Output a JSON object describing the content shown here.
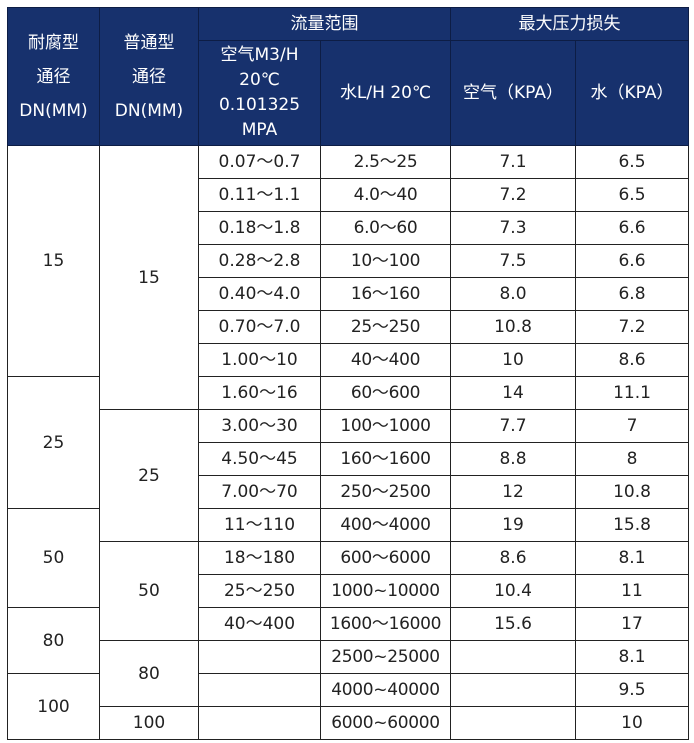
{
  "header": {
    "col1": [
      "耐腐型",
      "通径",
      "DN(MM)"
    ],
    "col2": [
      "普通型",
      "通径",
      "DN(MM)"
    ],
    "flow_group": "流量范围",
    "pressure_group": "最大压力损失",
    "air_flow": [
      "空气M3/H",
      "20℃",
      "0.101325",
      "MPA"
    ],
    "water_flow": "水L/H 20℃",
    "air_loss": "空气（KPA）",
    "water_loss": "水（KPA）"
  },
  "anticorrosion_dn": [
    {
      "value": "15",
      "span": 7
    },
    {
      "value": "25",
      "span": 4
    },
    {
      "value": "50",
      "span": 3
    },
    {
      "value": "80",
      "span": 2
    },
    {
      "value": "100",
      "span": 2
    }
  ],
  "standard_dn": [
    {
      "value": "15",
      "span": 8
    },
    {
      "value": "25",
      "span": 4
    },
    {
      "value": "50",
      "span": 3
    },
    {
      "value": "80",
      "span": 2
    },
    {
      "value": "100",
      "span": 1
    }
  ],
  "rows": [
    {
      "air_flow": "0.07～0.7",
      "water_flow": "2.5～25",
      "air_loss": "7.1",
      "water_loss": "6.5"
    },
    {
      "air_flow": "0.11～1.1",
      "water_flow": "4.0～40",
      "air_loss": "7.2",
      "water_loss": "6.5"
    },
    {
      "air_flow": "0.18～1.8",
      "water_flow": "6.0～60",
      "air_loss": "7.3",
      "water_loss": "6.6"
    },
    {
      "air_flow": "0.28～2.8",
      "water_flow": "10～100",
      "air_loss": "7.5",
      "water_loss": "6.6"
    },
    {
      "air_flow": "0.40～4.0",
      "water_flow": "16～160",
      "air_loss": "8.0",
      "water_loss": "6.8"
    },
    {
      "air_flow": "0.70～7.0",
      "water_flow": "25～250",
      "air_loss": "10.8",
      "water_loss": "7.2"
    },
    {
      "air_flow": "1.00～10",
      "water_flow": "40～400",
      "air_loss": "10",
      "water_loss": "8.6"
    },
    {
      "air_flow": "1.60～16",
      "water_flow": "60～600",
      "air_loss": "14",
      "water_loss": "11.1"
    },
    {
      "air_flow": "3.00～30",
      "water_flow": "100～1000",
      "air_loss": "7.7",
      "water_loss": "7"
    },
    {
      "air_flow": "4.50～45",
      "water_flow": "160～1600",
      "air_loss": "8.8",
      "water_loss": "8"
    },
    {
      "air_flow": "7.00～70",
      "water_flow": "250～2500",
      "air_loss": "12",
      "water_loss": "10.8"
    },
    {
      "air_flow": "11～110",
      "water_flow": "400～4000",
      "air_loss": "19",
      "water_loss": "15.8"
    },
    {
      "air_flow": "18～180",
      "water_flow": "600～6000",
      "air_loss": "8.6",
      "water_loss": "8.1"
    },
    {
      "air_flow": "25～250",
      "water_flow": "1000~10000",
      "air_loss": "10.4",
      "water_loss": "11"
    },
    {
      "air_flow": "40～400",
      "water_flow": "1600～16000",
      "air_loss": "15.6",
      "water_loss": "17"
    },
    {
      "air_flow": "",
      "water_flow": "2500~25000",
      "air_loss": "",
      "water_loss": "8.1"
    },
    {
      "air_flow": "",
      "water_flow": "4000~40000",
      "air_loss": "",
      "water_loss": "9.5"
    },
    {
      "air_flow": "",
      "water_flow": "6000~60000",
      "air_loss": "",
      "water_loss": "10"
    }
  ]
}
